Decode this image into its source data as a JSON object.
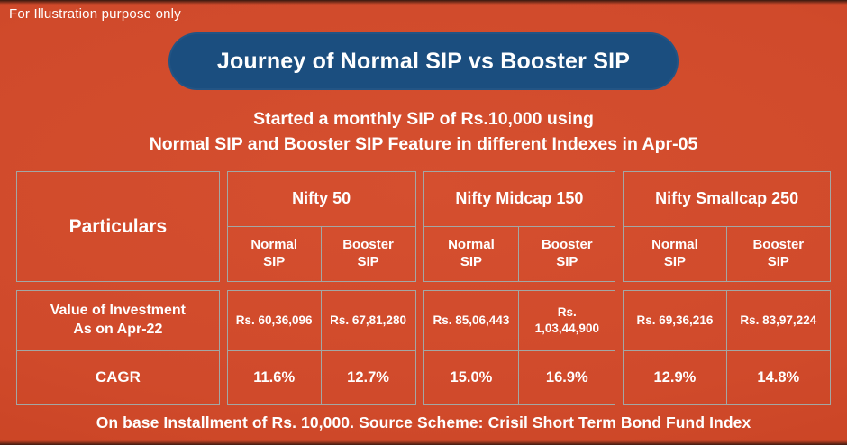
{
  "page": {
    "disclaimer": "For Illustration purpose only",
    "title": "Journey of Normal SIP vs Booster SIP",
    "subtitle_line1": "Started a monthly SIP of Rs.10,000 using",
    "subtitle_line2": "Normal SIP and Booster SIP Feature in different Indexes in Apr-05",
    "footnote": "On base Installment of Rs. 10,000. Source Scheme: Crisil Short Term Bond Fund Index"
  },
  "colors": {
    "background": "#d04a2b",
    "title_pill": "#1b4e7f",
    "cell_border": "#a3a7a4",
    "text": "#ffffff"
  },
  "table": {
    "particulars_header": "Particulars",
    "row_labels": {
      "value_of_investment": "Value of Investment\nAs on Apr-22",
      "cagr": "CAGR"
    },
    "groups": [
      {
        "index_name": "Nifty 50",
        "normal_label": "Normal\nSIP",
        "booster_label": "Booster\nSIP",
        "normal_value": "Rs. 60,36,096",
        "booster_value": "Rs. 67,81,280",
        "normal_cagr": "11.6%",
        "booster_cagr": "12.7%"
      },
      {
        "index_name": "Nifty Midcap 150",
        "normal_label": "Normal\nSIP",
        "booster_label": "Booster\nSIP",
        "normal_value": "Rs. 85,06,443",
        "booster_value": "Rs.\n1,03,44,900",
        "normal_cagr": "15.0%",
        "booster_cagr": "16.9%"
      },
      {
        "index_name": "Nifty Smallcap 250",
        "normal_label": "Normal\nSIP",
        "booster_label": "Booster\nSIP",
        "normal_value": "Rs. 69,36,216",
        "booster_value": "Rs. 83,97,224",
        "normal_cagr": "12.9%",
        "booster_cagr": "14.8%"
      }
    ]
  },
  "chart_data": {
    "type": "table",
    "title": "Journey of Normal SIP vs Booster SIP",
    "subtitle": "Started a monthly SIP of Rs.10,000 using Normal SIP and Booster SIP Feature in different Indexes in Apr-05",
    "columns": [
      "Particulars",
      "Nifty 50 - Normal SIP",
      "Nifty 50 - Booster SIP",
      "Nifty Midcap 150 - Normal SIP",
      "Nifty Midcap 150 - Booster SIP",
      "Nifty Smallcap 250 - Normal SIP",
      "Nifty Smallcap 250 - Booster SIP"
    ],
    "rows": [
      [
        "Value of Investment As on Apr-22",
        "Rs. 60,36,096",
        "Rs. 67,81,280",
        "Rs. 85,06,443",
        "Rs. 1,03,44,900",
        "Rs. 69,36,216",
        "Rs. 83,97,224"
      ],
      [
        "CAGR",
        "11.6%",
        "12.7%",
        "15.0%",
        "16.9%",
        "12.9%",
        "14.8%"
      ]
    ],
    "footnote": "On base Installment of Rs. 10,000. Source Scheme: Crisil Short Term Bond Fund Index"
  }
}
